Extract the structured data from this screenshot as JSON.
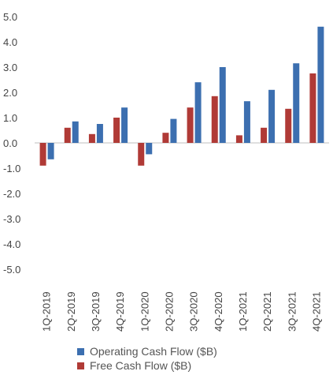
{
  "chart_data": {
    "type": "bar",
    "categories": [
      "1Q-2019",
      "2Q-2019",
      "3Q-2019",
      "4Q-2019",
      "1Q-2020",
      "2Q-2020",
      "3Q-2020",
      "4Q-2020",
      "1Q-2021",
      "2Q-2021",
      "3Q-2021",
      "4Q-2021"
    ],
    "series": [
      {
        "name": "Free Cash Flow ($B)",
        "color": "#b03a36",
        "values": [
          -0.9,
          0.6,
          0.35,
          1.0,
          -0.9,
          0.4,
          1.4,
          1.85,
          0.3,
          0.6,
          1.35,
          2.75
        ]
      },
      {
        "name": "Operating Cash Flow ($B)",
        "color": "#3c6fb0",
        "values": [
          -0.65,
          0.85,
          0.75,
          1.4,
          -0.45,
          0.95,
          2.4,
          3.0,
          1.65,
          2.1,
          3.15,
          4.6
        ]
      }
    ],
    "ylim": [
      -5.0,
      5.0
    ],
    "yticks": [
      "5.0",
      "4.0",
      "3.0",
      "2.0",
      "1.0",
      "0.0",
      "-1.0",
      "-2.0",
      "-3.0",
      "-4.0",
      "-5.0"
    ],
    "legend_position": "bottom",
    "grid": false
  }
}
